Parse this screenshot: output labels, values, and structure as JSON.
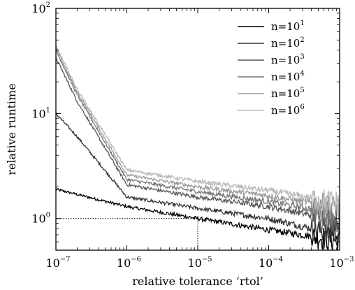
{
  "chart_data": {
    "type": "line",
    "xlabel": "relative tolerance ‘rtol’",
    "ylabel": "relative runtime",
    "x_scale": "log",
    "y_scale": "log",
    "xlim": [
      1e-07,
      0.001
    ],
    "ylim": [
      0.5,
      100
    ],
    "x_ticks": [
      {
        "value": 1e-07,
        "base": "10",
        "exp": "−7"
      },
      {
        "value": 1e-06,
        "base": "10",
        "exp": "−6"
      },
      {
        "value": 1e-05,
        "base": "10",
        "exp": "−5"
      },
      {
        "value": 0.0001,
        "base": "10",
        "exp": "−4"
      },
      {
        "value": 0.001,
        "base": "10",
        "exp": "−3"
      }
    ],
    "y_ticks": [
      {
        "value": 1,
        "base": "10",
        "exp": "0"
      },
      {
        "value": 10,
        "base": "10",
        "exp": "1"
      },
      {
        "value": 100,
        "base": "10",
        "exp": "2"
      }
    ],
    "grid": false,
    "legend_position": "top-right",
    "reference_point": {
      "x": 1e-05,
      "y": 1,
      "style": "dotted"
    },
    "series": [
      {
        "name_base": "n=10",
        "name_exp": "1",
        "color": "#000000",
        "x": [
          1e-07,
          1e-06,
          1e-05,
          0.0001,
          0.001
        ],
        "y": [
          1.9,
          1.3,
          1.0,
          0.78,
          0.62
        ]
      },
      {
        "name_base": "n=10",
        "name_exp": "2",
        "color": "#333333",
        "x": [
          1e-07,
          2e-07,
          1e-06,
          1e-05,
          0.0001,
          0.001
        ],
        "y": [
          10,
          6,
          1.6,
          1.25,
          1.0,
          0.7
        ]
      },
      {
        "name_base": "n=10",
        "name_exp": "3",
        "color": "#555555",
        "x": [
          1e-07,
          2e-07,
          1e-06,
          1e-05,
          0.0001,
          0.001
        ],
        "y": [
          34,
          13,
          2.1,
          1.6,
          1.3,
          0.95
        ]
      },
      {
        "name_base": "n=10",
        "name_exp": "4",
        "color": "#777777",
        "x": [
          1e-07,
          2e-07,
          1e-06,
          1e-05,
          0.0001,
          0.001
        ],
        "y": [
          40,
          15,
          2.35,
          1.8,
          1.45,
          1.1
        ]
      },
      {
        "name_base": "n=10",
        "name_exp": "5",
        "color": "#999999",
        "x": [
          1e-07,
          2e-07,
          1e-06,
          1e-05,
          0.0001,
          0.001
        ],
        "y": [
          42,
          16,
          2.6,
          2.0,
          1.65,
          1.25
        ]
      },
      {
        "name_base": "n=10",
        "name_exp": "6",
        "color": "#b8b8b8",
        "x": [
          1e-07,
          2e-07,
          1e-06,
          1e-05,
          0.0001,
          0.001
        ],
        "y": [
          44,
          17,
          2.9,
          2.25,
          1.85,
          1.4
        ]
      }
    ]
  }
}
